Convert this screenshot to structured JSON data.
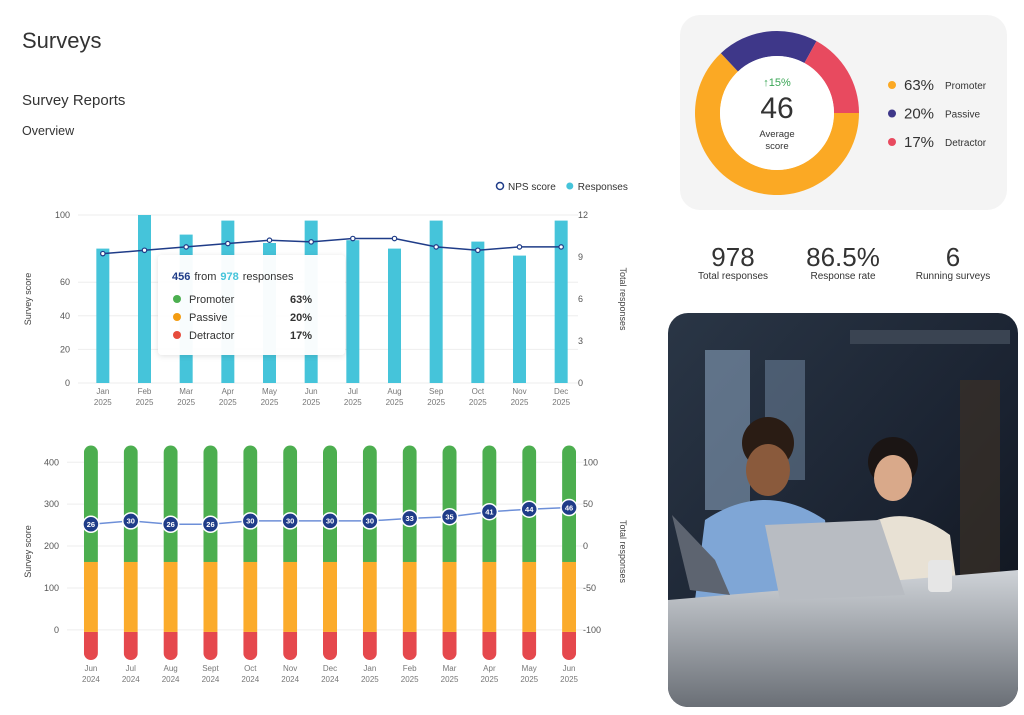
{
  "header": {
    "title": "Surveys",
    "section": "Survey Reports",
    "subtitle": "Overview"
  },
  "chart_data": [
    {
      "type": "bar_line",
      "categories": [
        [
          "Jan",
          "2025"
        ],
        [
          "Feb",
          "2025"
        ],
        [
          "Mar",
          "2025"
        ],
        [
          "Apr",
          "2025"
        ],
        [
          "May",
          "2025"
        ],
        [
          "Jun",
          "2025"
        ],
        [
          "Jul",
          "2025"
        ],
        [
          "Aug",
          "2025"
        ],
        [
          "Sep",
          "2025"
        ],
        [
          "Oct",
          "2025"
        ],
        [
          "Nov",
          "2025"
        ],
        [
          "Dec",
          "2025"
        ]
      ],
      "ylabel": "Survey score",
      "y2label": "Total responses",
      "ylim": [
        0,
        100
      ],
      "yticks": [
        0,
        20,
        40,
        60,
        100
      ],
      "y2lim": [
        0,
        12
      ],
      "y2ticks": [
        0,
        3,
        6,
        9,
        12
      ],
      "grid": true,
      "legend": "top-right",
      "series": [
        {
          "name": "NPS score",
          "kind": "line",
          "color": "#1f3c88",
          "values": [
            77,
            79,
            81,
            83,
            85,
            84,
            86,
            86,
            81,
            79,
            81,
            81
          ]
        },
        {
          "name": "Responses",
          "kind": "bar",
          "axis": "y2",
          "color": "#45c4da",
          "values": [
            9.6,
            12,
            10.6,
            11.6,
            10,
            11.6,
            10.2,
            9.6,
            11.6,
            10.1,
            9.1,
            11.6
          ]
        }
      ],
      "tooltip": {
        "count": "456",
        "from": "from",
        "total": "978",
        "unit": "responses",
        "items": [
          {
            "name": "Promoter",
            "value": "63%",
            "color": "#4caf50"
          },
          {
            "name": "Passive",
            "value": "20%",
            "color": "#f39c12"
          },
          {
            "name": "Detractor",
            "value": "17%",
            "color": "#e74c3c"
          }
        ]
      }
    },
    {
      "type": "stacked_bar_line",
      "categories": [
        [
          "Jun",
          "2024"
        ],
        [
          "Jul",
          "2024"
        ],
        [
          "Aug",
          "2024"
        ],
        [
          "Sept",
          "2024"
        ],
        [
          "Oct",
          "2024"
        ],
        [
          "Nov",
          "2024"
        ],
        [
          "Dec",
          "2024"
        ],
        [
          "Jan",
          "2025"
        ],
        [
          "Feb",
          "2025"
        ],
        [
          "Mar",
          "2025"
        ],
        [
          "Apr",
          "2025"
        ],
        [
          "May",
          "2025"
        ],
        [
          "Jun",
          "2025"
        ]
      ],
      "ylabel": "Survey score",
      "y2label": "Total responses",
      "ylim": [
        -72,
        446
      ],
      "yticks": [
        0,
        100,
        200,
        300,
        400
      ],
      "y2lim": [
        -136,
        123
      ],
      "y2ticks": [
        -100,
        -50,
        0,
        50,
        100
      ],
      "grid": true,
      "series": [
        {
          "kind": "bar",
          "color": "#e5484d",
          "values": [
            67,
            67,
            67,
            67,
            67,
            67,
            67,
            67,
            67,
            67,
            67,
            67,
            67
          ]
        },
        {
          "kind": "bar",
          "color": "#fbab2b",
          "values": [
            167,
            167,
            167,
            167,
            167,
            167,
            167,
            167,
            167,
            167,
            167,
            167,
            167
          ]
        },
        {
          "kind": "bar",
          "color": "#4cae4f",
          "values": [
            278,
            278,
            278,
            278,
            278,
            278,
            278,
            278,
            278,
            278,
            278,
            278,
            278
          ]
        },
        {
          "kind": "line",
          "axis": "y2",
          "color": "#6d8fd8",
          "marker_color": "#1f3c88",
          "values": [
            26,
            30,
            26,
            26,
            30,
            30,
            30,
            30,
            33,
            35,
            41,
            44,
            46
          ]
        }
      ]
    },
    {
      "type": "donut",
      "categories": [
        "Promoter",
        "Passive",
        "Detractor"
      ],
      "values": [
        63,
        20,
        17
      ],
      "value_labels": [
        "63%",
        "20%",
        "17%"
      ],
      "colors": [
        "#fba924",
        "#3e3789",
        "#e84a5f"
      ],
      "change": "↑15%",
      "center_value": 46,
      "center_label": [
        "Average",
        "score"
      ]
    }
  ],
  "stats": [
    {
      "value": "978",
      "label": "Total responses"
    },
    {
      "value": "86.5%",
      "label": "Response rate"
    },
    {
      "value": "6",
      "label": "Running surveys"
    }
  ]
}
